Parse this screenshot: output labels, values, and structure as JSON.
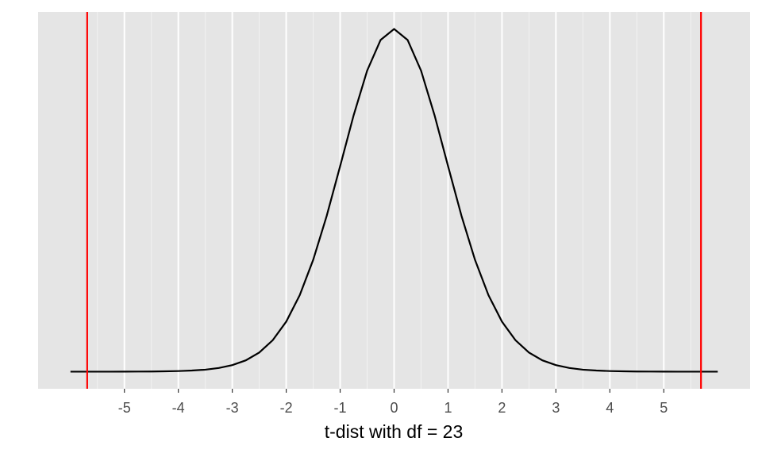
{
  "chart_data": {
    "type": "line",
    "x_label": "t-dist with df = 23",
    "x": [
      -6,
      -5.75,
      -5.5,
      -5.25,
      -5,
      -4.75,
      -4.5,
      -4.25,
      -4,
      -3.75,
      -3.5,
      -3.25,
      -3,
      -2.75,
      -2.5,
      -2.25,
      -2,
      -1.75,
      -1.5,
      -1.25,
      -1,
      -0.75,
      -0.5,
      -0.25,
      0,
      0.25,
      0.5,
      0.75,
      1,
      1.25,
      1.5,
      1.75,
      2,
      2.25,
      2.5,
      2.75,
      3,
      3.25,
      3.5,
      3.75,
      4,
      4.25,
      4.5,
      4.75,
      5,
      5.25,
      5.5,
      5.75,
      6
    ],
    "series": [
      {
        "color": "#000000",
        "values": [
          0,
          0,
          0,
          0,
          6e-05,
          0.0001,
          0.0002,
          0.0004,
          0.0007,
          0.0013,
          0.0023,
          0.0042,
          0.0075,
          0.013,
          0.022,
          0.0362,
          0.0576,
          0.088,
          0.1287,
          0.1793,
          0.2367,
          0.2952,
          0.3465,
          0.3819,
          0.3945,
          0.3819,
          0.3465,
          0.2952,
          0.2367,
          0.1793,
          0.1287,
          0.088,
          0.0576,
          0.0362,
          0.022,
          0.013,
          0.0075,
          0.0042,
          0.0023,
          0.0013,
          0.0007,
          0.0004,
          0.0002,
          0.0001,
          6e-05,
          0,
          0,
          0,
          0
        ]
      }
    ],
    "vlines": {
      "color": "#ff0000",
      "values": [
        -5.69,
        5.69
      ]
    },
    "xlim": [
      -6.6,
      6.6
    ],
    "xticks": [
      -5,
      -4,
      -3,
      -2,
      -1,
      0,
      1,
      2,
      3,
      4,
      5
    ],
    "minor_grid": [
      -5.5,
      -4.5,
      -3.5,
      -2.5,
      -1.5,
      -0.5,
      0.5,
      1.5,
      2.5,
      3.5,
      4.5,
      5.5
    ],
    "ylim": [
      -0.0197,
      0.4142
    ],
    "grid": true
  }
}
